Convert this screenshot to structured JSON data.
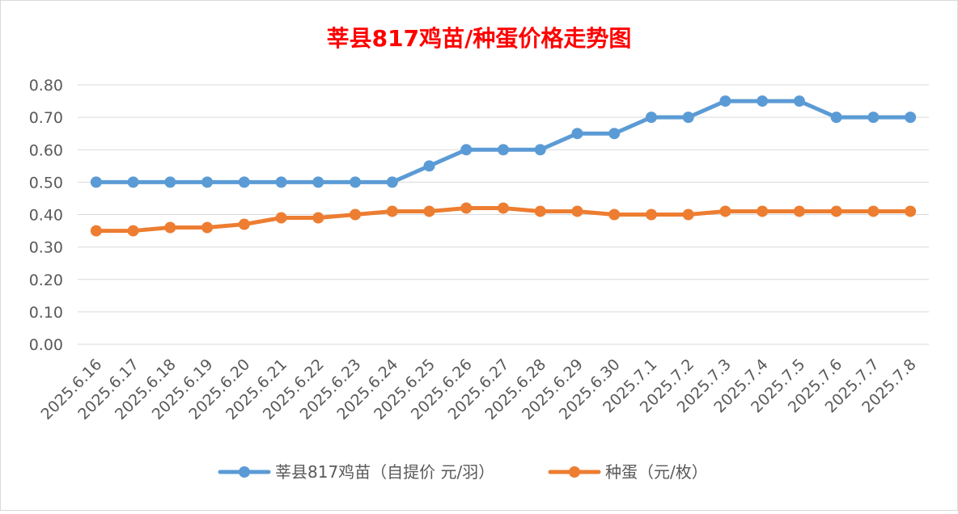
{
  "chart_data": {
    "type": "line",
    "title": "莘县817鸡苗/种蛋价格走势图",
    "title_color": "#FF0000",
    "categories": [
      "2025.6.16",
      "2025.6.17",
      "2025.6.18",
      "2025.6.19",
      "2025.6.20",
      "2025.6.21",
      "2025.6.22",
      "2025.6.23",
      "2025.6.24",
      "2025.6.25",
      "2025.6.26",
      "2025.6.27",
      "2025.6.28",
      "2025.6.29",
      "2025.6.30",
      "2025.7.1",
      "2025.7.2",
      "2025.7.3",
      "2025.7.4",
      "2025.7.5",
      "2025.7.6",
      "2025.7.7",
      "2025.7.8"
    ],
    "series": [
      {
        "name": "莘县817鸡苗（自提价 元/羽）",
        "color": "#5B9BD5",
        "values": [
          0.5,
          0.5,
          0.5,
          0.5,
          0.5,
          0.5,
          0.5,
          0.5,
          0.5,
          0.55,
          0.6,
          0.6,
          0.6,
          0.65,
          0.65,
          0.7,
          0.7,
          0.75,
          0.75,
          0.75,
          0.7,
          0.7,
          0.7
        ]
      },
      {
        "name": "种蛋（元/枚）",
        "color": "#ED7D31",
        "values": [
          0.35,
          0.35,
          0.36,
          0.36,
          0.37,
          0.39,
          0.39,
          0.4,
          0.41,
          0.41,
          0.42,
          0.42,
          0.41,
          0.41,
          0.4,
          0.4,
          0.4,
          0.41,
          0.41,
          0.41,
          0.41,
          0.41,
          0.41
        ]
      }
    ],
    "y_ticks": [
      "0.00",
      "0.10",
      "0.20",
      "0.30",
      "0.40",
      "0.50",
      "0.60",
      "0.70",
      "0.80"
    ],
    "ylim": [
      0,
      0.8
    ],
    "grid": true,
    "legend_position": "bottom"
  }
}
